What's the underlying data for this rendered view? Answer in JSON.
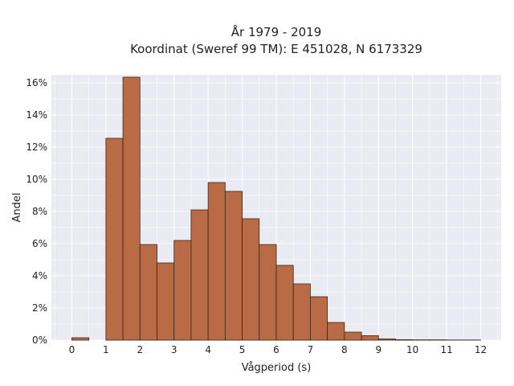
{
  "chart_data": {
    "type": "bar",
    "title": "År 1979 - 2019",
    "subtitle": "Koordinat (Sweref 99 TM): E 451028, N 6173329",
    "xlabel": "Vågperiod (s)",
    "ylabel": "Andel",
    "xlim": [
      -0.6,
      12.6
    ],
    "ylim": [
      0,
      16.5
    ],
    "xticks": [
      0,
      1,
      2,
      3,
      4,
      5,
      6,
      7,
      8,
      9,
      10,
      11,
      12
    ],
    "yticks": [
      0,
      2,
      4,
      6,
      8,
      10,
      12,
      14,
      16
    ],
    "ytick_format": "percent",
    "bin_width": 0.5,
    "bins": [
      {
        "start": 0.0,
        "value": 0.15
      },
      {
        "start": 0.5,
        "value": 0.0
      },
      {
        "start": 1.0,
        "value": 12.55
      },
      {
        "start": 1.5,
        "value": 16.35
      },
      {
        "start": 2.0,
        "value": 5.95
      },
      {
        "start": 2.5,
        "value": 4.8
      },
      {
        "start": 3.0,
        "value": 6.2
      },
      {
        "start": 3.5,
        "value": 8.1
      },
      {
        "start": 4.0,
        "value": 9.8
      },
      {
        "start": 4.5,
        "value": 9.25
      },
      {
        "start": 5.0,
        "value": 7.55
      },
      {
        "start": 5.5,
        "value": 5.95
      },
      {
        "start": 6.0,
        "value": 4.65
      },
      {
        "start": 6.5,
        "value": 3.5
      },
      {
        "start": 7.0,
        "value": 2.7
      },
      {
        "start": 7.5,
        "value": 1.1
      },
      {
        "start": 8.0,
        "value": 0.5
      },
      {
        "start": 8.5,
        "value": 0.28
      },
      {
        "start": 9.0,
        "value": 0.08
      },
      {
        "start": 9.5,
        "value": 0.03
      },
      {
        "start": 10.0,
        "value": 0.02
      },
      {
        "start": 10.5,
        "value": 0.02
      },
      {
        "start": 11.0,
        "value": 0.01
      },
      {
        "start": 11.5,
        "value": 0.01
      }
    ],
    "grid": true,
    "colors": {
      "bar_fill": "#b86b45",
      "bar_edge": "#3a2418",
      "plot_background": "#eaeaf2",
      "grid": "#ffffff"
    }
  }
}
